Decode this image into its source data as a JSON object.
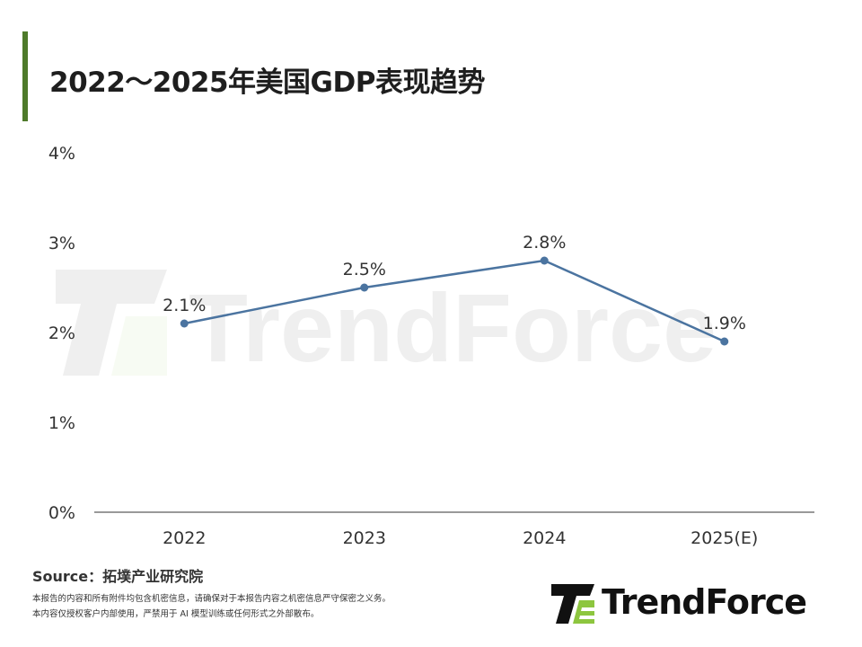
{
  "colors": {
    "accent": "#4e7a2a",
    "line": "#4b74a0",
    "axis": "#333333",
    "logo_green": "#8dc63f",
    "logo_dark": "#111111"
  },
  "chart_data": {
    "type": "line",
    "title": "2022～2025年美国GDP表现趋势",
    "categories": [
      "2022",
      "2023",
      "2024",
      "2025(E)"
    ],
    "series": [
      {
        "values": [
          2.1,
          2.5,
          2.8,
          1.9
        ]
      }
    ],
    "data_labels": [
      "2.1%",
      "2.5%",
      "2.8%",
      "1.9%"
    ],
    "y_ticks": [
      "0%",
      "1%",
      "2%",
      "3%",
      "4%"
    ],
    "ylim": [
      0,
      4
    ],
    "grid": false,
    "legend": "none"
  },
  "footer": {
    "source": "Source：拓墣产业研究院",
    "disclaimer_line1": "本报告的内容和所有附件均包含机密信息，请确保对于本报告内容之机密信息严守保密之义务。",
    "disclaimer_line2": "本内容仅授权客户内部使用，严禁用于 AI 模型训练或任何形式之外部散布。"
  },
  "brand": {
    "logo_text": "TrendForce",
    "logo_icon": "trendforce-logo-icon"
  }
}
